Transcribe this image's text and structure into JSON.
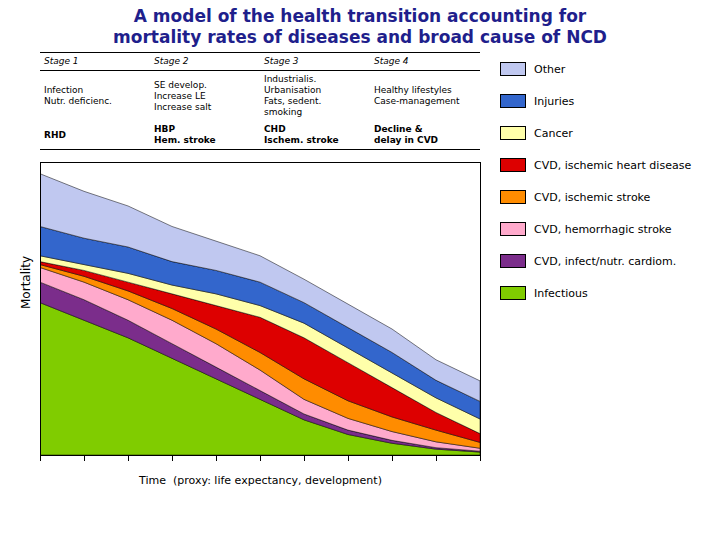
{
  "chart_data": {
    "type": "area",
    "stacked": true,
    "title": "A model of the health transition accounting for\nmortality rates of diseases and broad cause of NCD",
    "title_color": "#1f1f8c",
    "xlabel": "Time  (proxy: life expectancy, development)",
    "ylabel": "Mortality",
    "table": {
      "headers": [
        "Stage 1",
        "Stage 2",
        "Stage 3",
        "Stage 4"
      ],
      "rows": [
        [
          "Infection\nNutr. deficienc.",
          "SE develop.\nIncrease LE\nIncrease salt",
          "Industrialis.\nUrbanisation\nFats, sedent.\nsmoking",
          "Healthy lifestyles\nCase-management"
        ],
        [
          "RHD",
          "HBP\nHem. stroke",
          "CHD\nIschem. stroke",
          "Decline &\ndelay in CVD"
        ]
      ]
    },
    "x": [
      0,
      1,
      2,
      3,
      4,
      5,
      6,
      7,
      8,
      9,
      10
    ],
    "series": [
      {
        "name": "Infectious",
        "color": "#80cc00",
        "values": [
          52,
          46,
          40,
          33,
          26,
          19,
          12,
          7,
          4,
          2,
          1
        ]
      },
      {
        "name": "CVD, infect/nutr. cardiom.",
        "color": "#7b2d8b",
        "values": [
          7,
          7,
          6,
          5,
          4,
          3,
          2,
          1.5,
          1,
          0.5,
          0.3
        ]
      },
      {
        "name": "CVD, hemorrhagic stroke",
        "color": "#ffaacc",
        "values": [
          5,
          6,
          7,
          8,
          8,
          7,
          5,
          4,
          3,
          2,
          1
        ]
      },
      {
        "name": "CVD, ischemic stroke",
        "color": "#ff8c00",
        "values": [
          1,
          2,
          3,
          4,
          5,
          6,
          7,
          6,
          5,
          4,
          2
        ]
      },
      {
        "name": "CVD, ischemic heart disease",
        "color": "#dd0000",
        "values": [
          1,
          2,
          3,
          5,
          8,
          12,
          14,
          13,
          10,
          6,
          3
        ]
      },
      {
        "name": "Cancer",
        "color": "#ffffaa",
        "values": [
          2,
          2,
          3,
          3,
          4,
          4,
          5,
          5,
          5,
          5,
          5
        ]
      },
      {
        "name": "Injuries",
        "color": "#3366cc",
        "values": [
          10,
          9,
          9,
          8,
          8,
          8,
          7,
          7,
          7,
          6,
          6
        ]
      },
      {
        "name": "Other",
        "color": "#c0c8f0",
        "values": [
          18,
          16,
          14,
          12,
          10,
          9,
          8,
          8,
          8,
          7,
          7
        ]
      }
    ],
    "xlim": [
      0,
      10
    ],
    "xticks": [
      0,
      1,
      2,
      3,
      4,
      5,
      6,
      7,
      8,
      9,
      10
    ],
    "ylim": [
      0,
      100
    ],
    "yticks": [],
    "tick_labels": false,
    "grid": false,
    "legend": "right"
  }
}
